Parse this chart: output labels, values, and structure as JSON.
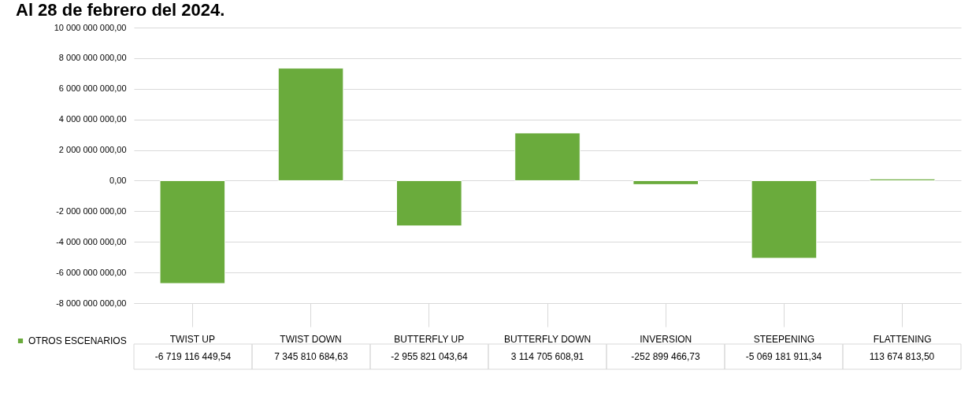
{
  "chart_data": {
    "type": "bar",
    "title": "Al 28 de febrero del 2024.",
    "categories": [
      "TWIST UP",
      "TWIST DOWN",
      "BUTTERFLY UP",
      "BUTTERFLY DOWN",
      "INVERSION",
      "STEEPENING",
      "FLATTENING"
    ],
    "series": [
      {
        "name": "OTROS ESCENARIOS",
        "color": "#6aab3c",
        "values": [
          -6719116449.54,
          7345810684.63,
          -2955821043.64,
          3114705608.91,
          -252899466.73,
          -5069181911.34,
          113674813.5
        ],
        "value_labels": [
          "-6 719 116 449,54",
          "7 345 810 684,63",
          "-2 955 821 043,64",
          "3 114 705 608,91",
          "-252 899 466,73",
          "-5 069 181 911,34",
          "113 674 813,50"
        ]
      }
    ],
    "ylim": [
      -8000000000,
      10000000000
    ],
    "yticks": [
      {
        "value": -8000000000,
        "label": "-8 000 000 000,00"
      },
      {
        "value": -6000000000,
        "label": "-6 000 000 000,00"
      },
      {
        "value": -4000000000,
        "label": "-4 000 000 000,00"
      },
      {
        "value": -2000000000,
        "label": "-2 000 000 000,00"
      },
      {
        "value": 0,
        "label": "0,00"
      },
      {
        "value": 2000000000,
        "label": "2 000 000 000,00"
      },
      {
        "value": 4000000000,
        "label": "4 000 000 000,00"
      },
      {
        "value": 6000000000,
        "label": "6 000 000 000,00"
      },
      {
        "value": 8000000000,
        "label": "8 000 000 000,00"
      },
      {
        "value": 10000000000,
        "label": "10 000 000 000,00"
      }
    ],
    "grid": "y",
    "legend": "bottom left"
  }
}
